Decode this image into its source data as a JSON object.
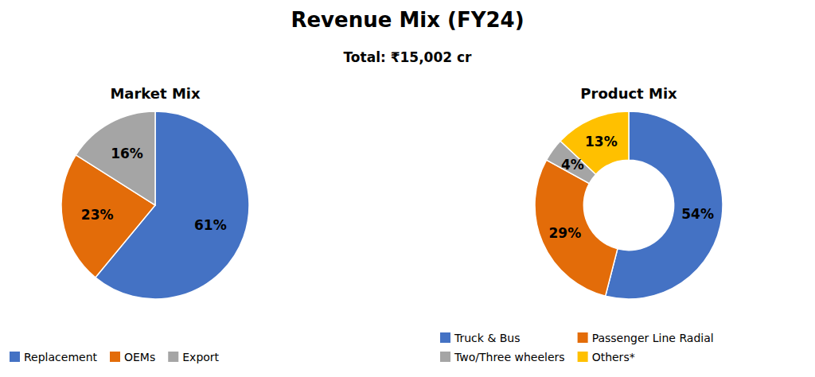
{
  "title": "Revenue Mix (FY24)",
  "subtitle": "Total: ₹15,002 cr",
  "chart_data": [
    {
      "type": "pie",
      "title": "Market Mix",
      "categories": [
        "Replacement",
        "OEMs",
        "Export"
      ],
      "values": [
        61,
        23,
        16
      ],
      "value_labels": [
        "61%",
        "23%",
        "16%"
      ],
      "colors": [
        "#4472C4",
        "#E36C09",
        "#A5A5A5"
      ],
      "data_labels": true,
      "legend": "bottom"
    },
    {
      "type": "donut",
      "title": "Product Mix",
      "categories": [
        "Truck & Bus",
        "Passenger Line Radial",
        "Two/Three wheelers",
        "Others*"
      ],
      "values": [
        54,
        29,
        4,
        13
      ],
      "value_labels": [
        "54%",
        "29%",
        "4%",
        "13%"
      ],
      "colors": [
        "#4472C4",
        "#E36C09",
        "#A5A5A5",
        "#FFC000"
      ],
      "data_labels": true,
      "legend": "bottom"
    }
  ]
}
